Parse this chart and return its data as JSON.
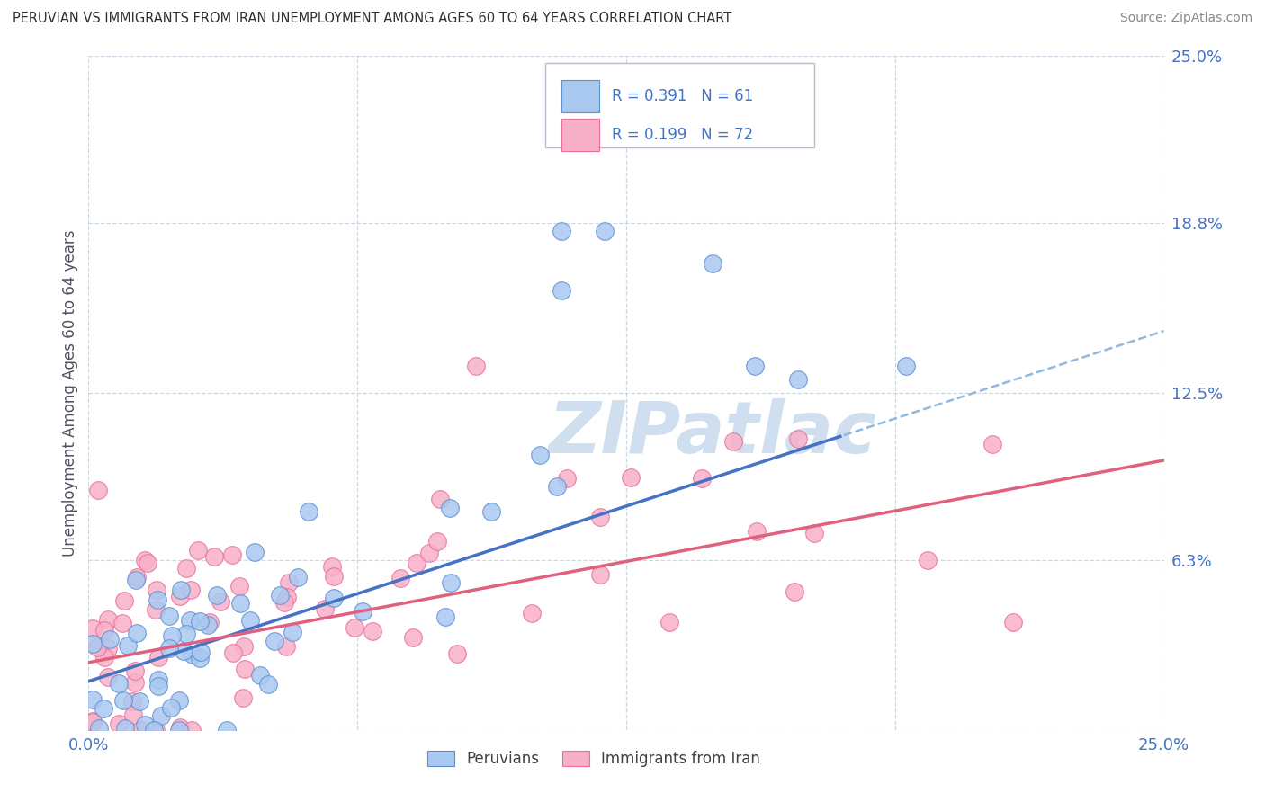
{
  "title": "PERUVIAN VS IMMIGRANTS FROM IRAN UNEMPLOYMENT AMONG AGES 60 TO 64 YEARS CORRELATION CHART",
  "source": "Source: ZipAtlas.com",
  "ylabel": "Unemployment Among Ages 60 to 64 years",
  "xlim": [
    0.0,
    0.25
  ],
  "ylim": [
    0.0,
    0.25
  ],
  "yticks": [
    0.0,
    0.063,
    0.125,
    0.188,
    0.25
  ],
  "ytick_labels": [
    "",
    "6.3%",
    "12.5%",
    "18.8%",
    "25.0%"
  ],
  "xticks": [
    0.0,
    0.0625,
    0.125,
    0.1875,
    0.25
  ],
  "xtick_labels": [
    "0.0%",
    "",
    "",
    "",
    "25.0%"
  ],
  "peruvian_color": "#a8c8f0",
  "iran_color": "#f8b0c8",
  "peruvian_edge_color": "#6090d0",
  "iran_edge_color": "#e87098",
  "peruvian_line_color": "#4472c4",
  "iran_line_color": "#e06080",
  "peruvian_dash_color": "#90b8e0",
  "peruvian_R": 0.391,
  "peruvian_N": 61,
  "iran_R": 0.199,
  "iran_N": 72,
  "watermark": "ZIPatlас",
  "watermark_color": "#d0dff0",
  "title_color": "#303030",
  "tick_label_color": "#4472c4",
  "legend_label_peruvian": "Peruvians",
  "legend_label_iran": "Immigrants from Iran",
  "background_color": "#ffffff",
  "grid_color": "#c0cfe0"
}
